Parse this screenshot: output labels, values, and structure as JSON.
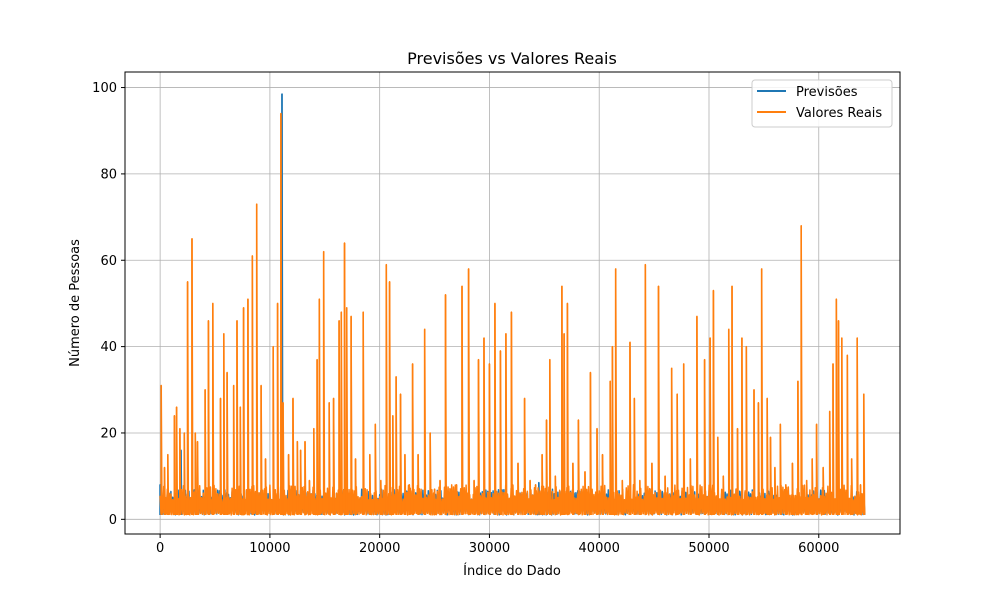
{
  "chart_data": {
    "type": "line",
    "title": "Previsões vs Valores Reais",
    "xlabel": "Índice do Dado",
    "ylabel": "Número de Pessoas",
    "xlim": [
      -3200,
      67400
    ],
    "ylim": [
      -3.4,
      103.6
    ],
    "x_ticks": [
      0,
      10000,
      20000,
      30000,
      40000,
      50000,
      60000
    ],
    "x_tick_labels": [
      "0",
      "10000",
      "20000",
      "30000",
      "40000",
      "50000",
      "60000"
    ],
    "y_ticks": [
      0,
      20,
      40,
      60,
      80,
      100
    ],
    "y_tick_labels": [
      "0",
      "20",
      "40",
      "60",
      "80",
      "100"
    ],
    "grid": true,
    "legend_position": "top-right",
    "x_range": [
      0,
      64200
    ],
    "series": [
      {
        "name": "Previsões",
        "color": "#1f77b4",
        "peaks": [
          [
            0,
            8
          ],
          [
            1900,
            16
          ],
          [
            11100,
            98.5
          ],
          [
            34500,
            8.5
          ]
        ]
      },
      {
        "name": "Valores Reais",
        "color": "#ff7f0e",
        "peaks": [
          [
            100,
            31
          ],
          [
            400,
            12
          ],
          [
            700,
            15
          ],
          [
            1300,
            24
          ],
          [
            1500,
            26
          ],
          [
            1800,
            21
          ],
          [
            2200,
            20
          ],
          [
            2500,
            55
          ],
          [
            2900,
            65
          ],
          [
            3200,
            20
          ],
          [
            3400,
            18
          ],
          [
            4100,
            30
          ],
          [
            4400,
            46
          ],
          [
            4800,
            50
          ],
          [
            5500,
            28
          ],
          [
            5800,
            43
          ],
          [
            6100,
            34
          ],
          [
            6700,
            31
          ],
          [
            7000,
            46
          ],
          [
            7300,
            26
          ],
          [
            7600,
            49
          ],
          [
            8000,
            51
          ],
          [
            8400,
            61
          ],
          [
            8800,
            73
          ],
          [
            9200,
            31
          ],
          [
            9600,
            14
          ],
          [
            10300,
            40
          ],
          [
            10700,
            50
          ],
          [
            11000,
            94
          ],
          [
            11200,
            27
          ],
          [
            11700,
            15
          ],
          [
            12100,
            28
          ],
          [
            12500,
            18
          ],
          [
            12800,
            16
          ],
          [
            13200,
            18
          ],
          [
            13600,
            9
          ],
          [
            14000,
            21
          ],
          [
            14300,
            37
          ],
          [
            14500,
            51
          ],
          [
            14900,
            62
          ],
          [
            15400,
            27
          ],
          [
            15800,
            28
          ],
          [
            16300,
            46
          ],
          [
            16500,
            48
          ],
          [
            16800,
            64
          ],
          [
            17000,
            49
          ],
          [
            17400,
            47
          ],
          [
            17800,
            14
          ],
          [
            18500,
            48
          ],
          [
            19100,
            15
          ],
          [
            19600,
            22
          ],
          [
            20100,
            9
          ],
          [
            20600,
            59
          ],
          [
            20900,
            55
          ],
          [
            21200,
            24
          ],
          [
            21500,
            33
          ],
          [
            21900,
            29
          ],
          [
            22300,
            15
          ],
          [
            22700,
            8
          ],
          [
            23000,
            36
          ],
          [
            23500,
            15
          ],
          [
            24100,
            44
          ],
          [
            24600,
            20
          ],
          [
            25000,
            7
          ],
          [
            25500,
            9
          ],
          [
            26000,
            52
          ],
          [
            26500,
            7
          ],
          [
            27000,
            8
          ],
          [
            27500,
            54
          ],
          [
            28100,
            58
          ],
          [
            28600,
            9
          ],
          [
            29000,
            37
          ],
          [
            29500,
            42
          ],
          [
            30000,
            36
          ],
          [
            30500,
            50
          ],
          [
            31000,
            39
          ],
          [
            31500,
            43
          ],
          [
            32000,
            48
          ],
          [
            32600,
            13
          ],
          [
            33200,
            28
          ],
          [
            33700,
            9
          ],
          [
            34200,
            8
          ],
          [
            34800,
            15
          ],
          [
            35200,
            23
          ],
          [
            35500,
            37
          ],
          [
            36000,
            10
          ],
          [
            36600,
            54
          ],
          [
            36800,
            43
          ],
          [
            37100,
            50
          ],
          [
            37600,
            13
          ],
          [
            38100,
            23
          ],
          [
            38700,
            11
          ],
          [
            39200,
            34
          ],
          [
            39800,
            21
          ],
          [
            40300,
            15
          ],
          [
            41000,
            32
          ],
          [
            41200,
            40
          ],
          [
            41500,
            58
          ],
          [
            42100,
            9
          ],
          [
            42800,
            41
          ],
          [
            43200,
            28
          ],
          [
            43700,
            9
          ],
          [
            44200,
            59
          ],
          [
            44800,
            13
          ],
          [
            45400,
            54
          ],
          [
            46000,
            10
          ],
          [
            46600,
            35
          ],
          [
            47100,
            29
          ],
          [
            47700,
            36
          ],
          [
            48300,
            14
          ],
          [
            48900,
            47
          ],
          [
            49600,
            37
          ],
          [
            50100,
            42
          ],
          [
            50400,
            53
          ],
          [
            50800,
            19
          ],
          [
            51300,
            10
          ],
          [
            51800,
            44
          ],
          [
            52100,
            54
          ],
          [
            52600,
            21
          ],
          [
            53000,
            42
          ],
          [
            53400,
            40
          ],
          [
            54100,
            30
          ],
          [
            54500,
            27
          ],
          [
            54800,
            58
          ],
          [
            55300,
            28
          ],
          [
            55600,
            19
          ],
          [
            56000,
            12
          ],
          [
            56500,
            22
          ],
          [
            57000,
            8
          ],
          [
            57600,
            13
          ],
          [
            58100,
            32
          ],
          [
            58400,
            68
          ],
          [
            58900,
            9
          ],
          [
            59400,
            14
          ],
          [
            59800,
            22
          ],
          [
            60400,
            12
          ],
          [
            61000,
            25
          ],
          [
            61300,
            36
          ],
          [
            61600,
            51
          ],
          [
            61800,
            46
          ],
          [
            62100,
            42
          ],
          [
            62600,
            38
          ],
          [
            63000,
            14
          ],
          [
            63500,
            42
          ],
          [
            63800,
            8
          ],
          [
            64100,
            29
          ]
        ]
      }
    ]
  }
}
